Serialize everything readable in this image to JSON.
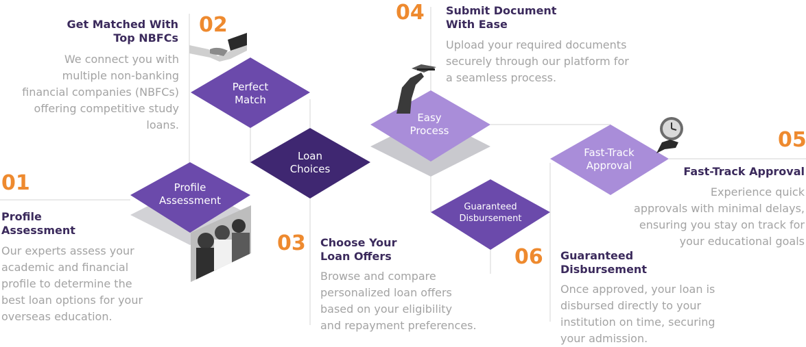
{
  "steps": [
    {
      "number": "01",
      "title_line1": "Profile",
      "title_line2": "Assessment",
      "diamond_line1": "Profile",
      "diamond_line2": "Assessment",
      "desc": [
        "Our experts assess your",
        "academic and financial",
        "profile to determine the",
        "best loan options for your",
        "overseas education."
      ]
    },
    {
      "number": "02",
      "title_line1": "Get Matched With",
      "title_line2": "Top NBFCs",
      "diamond_line1": "Perfect",
      "diamond_line2": "Match",
      "desc": [
        "We connect you with",
        "multiple non-banking",
        "financial companies (NBFCs)",
        "offering competitive study",
        "loans."
      ]
    },
    {
      "number": "03",
      "title_line1": "Choose Your",
      "title_line2": "Loan Offers",
      "diamond_line1": "Loan",
      "diamond_line2": "Choices",
      "desc": [
        "Browse and compare",
        "personalized loan offers",
        "based on your eligibility",
        "and repayment preferences."
      ]
    },
    {
      "number": "04",
      "title_line1": "Submit Document",
      "title_line2": "With Ease",
      "diamond_line1": "Easy",
      "diamond_line2": "Process",
      "desc": [
        "Upload your required documents",
        "securely through our platform for",
        "a seamless process."
      ]
    },
    {
      "number": "05",
      "title_line1": "Fast-Track Approval",
      "diamond_line1": "Fast-Track",
      "diamond_line2": "Approval",
      "desc": [
        "Experience quick",
        "approvals with minimal delays,",
        "ensuring you stay on track for",
        "your educational goals"
      ]
    },
    {
      "number": "06",
      "title_line1": "Guaranteed",
      "title_line2": "Disbursement",
      "diamond_line1": "Guaranteed",
      "diamond_line2": "Disbursement",
      "desc": [
        "Once approved, your loan is",
        "disbursed directly to your",
        "institution on time, securing",
        "your admission."
      ]
    }
  ],
  "colors": {
    "accent_number": "#EE8A2F",
    "title": "#3B2A5C",
    "desc": "#A3A3A3",
    "diamond_mid": "#6B4AAB",
    "diamond_dark": "#3F2771",
    "diamond_light": "#A98DD9",
    "shadow": "#CFCFD4"
  },
  "icons": [
    "students-photo-icon",
    "handshake-icon",
    "hand-pen-icon",
    "hand-clock-icon"
  ]
}
